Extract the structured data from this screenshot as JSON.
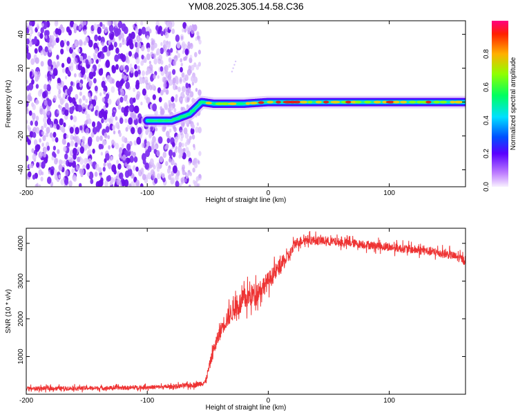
{
  "chart_data": [
    {
      "type": "heatmap",
      "title": "YM08.2025.305.14.58.C36",
      "xlabel": "Height of straight line (km)",
      "ylabel": "Frequency (Hz)",
      "xlim": [
        -200,
        163
      ],
      "ylim": [
        -50,
        48
      ],
      "xticks": [
        -200,
        -100,
        0,
        100
      ],
      "xtick_labels": [
        "-200",
        "-100",
        "0",
        "100"
      ],
      "yticks": [
        -40,
        -20,
        0,
        20,
        40
      ],
      "ytick_labels": [
        "-40",
        "-20",
        "0",
        "20",
        "40"
      ],
      "colorbar": {
        "label": "Normalized spectral amplitude",
        "range": [
          0,
          1
        ],
        "ticks": [
          0.0,
          0.2,
          0.4,
          0.6,
          0.8
        ],
        "tick_labels": [
          "0.0",
          "0.2",
          "0.4",
          "0.6",
          "0.8"
        ]
      },
      "noise_region_x": [
        -200,
        -58
      ],
      "signal_track": {
        "x": [
          -100,
          -80,
          -65,
          -55,
          -45,
          -20,
          0,
          20,
          60,
          100,
          163
        ],
        "frequency": [
          -11,
          -11,
          -7,
          0,
          -1,
          -1,
          0,
          0,
          0,
          0,
          0
        ],
        "peak_amplitude": [
          0.45,
          0.55,
          0.6,
          0.7,
          0.8,
          0.85,
          0.9,
          0.95,
          0.85,
          0.85,
          0.75
        ]
      }
    },
    {
      "type": "line",
      "xlabel": "Height of straight line (km)",
      "ylabel": "SNR (10 * v/v)",
      "xlim": [
        -200,
        163
      ],
      "ylim": [
        0,
        4400
      ],
      "xticks": [
        -200,
        -100,
        0,
        100
      ],
      "xtick_labels": [
        "-200",
        "-100",
        "0",
        "100"
      ],
      "yticks": [
        1000,
        2000,
        3000,
        4000
      ],
      "ytick_labels": [
        "1000",
        "2000",
        "3000",
        "4000"
      ],
      "series": [
        {
          "name": "SNR",
          "color": "#ee3333",
          "x": [
            -200,
            -160,
            -120,
            -80,
            -60,
            -52,
            -45,
            -38,
            -30,
            -20,
            -10,
            0,
            10,
            18,
            22,
            30,
            50,
            70,
            100,
            130,
            150,
            163
          ],
          "y": [
            150,
            160,
            170,
            200,
            250,
            320,
            1200,
            1800,
            2200,
            2500,
            2700,
            3000,
            3400,
            3700,
            4000,
            4100,
            4050,
            4000,
            3900,
            3800,
            3700,
            3550
          ],
          "noise_amplitude": [
            80,
            80,
            80,
            80,
            100,
            120,
            250,
            300,
            400,
            450,
            400,
            350,
            300,
            250,
            200,
            180,
            170,
            160,
            160,
            170,
            170,
            160
          ]
        }
      ]
    }
  ]
}
